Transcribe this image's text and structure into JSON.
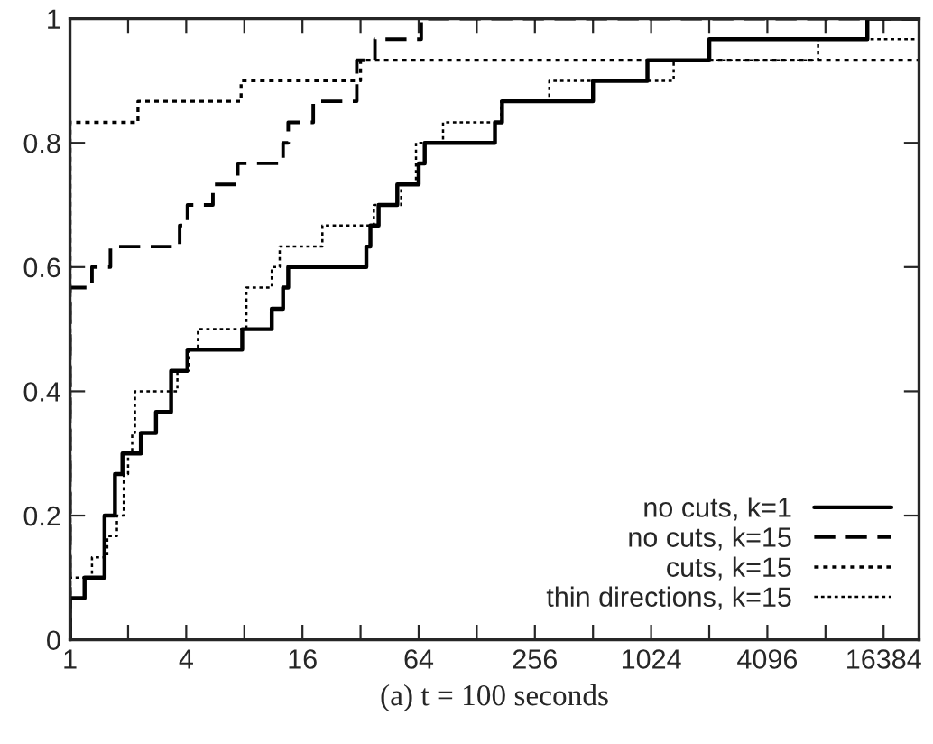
{
  "chart_data": {
    "type": "step",
    "xlabel": "(a) t = 100 seconds",
    "log": "x",
    "xlim": [
      1,
      25000
    ],
    "xticks": [
      1,
      {
        "value": 2,
        "label": null
      },
      4,
      {
        "value": 8,
        "label": null
      },
      16,
      {
        "value": 32,
        "label": null
      },
      64,
      {
        "value": 128,
        "label": null
      },
      256,
      {
        "value": 512,
        "label": null
      },
      1024,
      {
        "value": 2048,
        "label": null
      },
      4096,
      {
        "value": 8192,
        "label": null
      },
      16384
    ],
    "ylim": [
      0,
      1
    ],
    "yticks": [
      0,
      0.2,
      0.4,
      0.6,
      0.8,
      1
    ],
    "grid": false,
    "legend": "bottom right",
    "series": [
      {
        "name": "no cuts, k=1",
        "color": "#000000",
        "line_style": "solid",
        "x": [
          1,
          1,
          1.19,
          1.51,
          1.71,
          1.87,
          2.33,
          2.79,
          3.34,
          4.06,
          7.8,
          11.1,
          12.7,
          13.5,
          34.3,
          36,
          39.7,
          49.6,
          64,
          68.8,
          159,
          173,
          512,
          980,
          2050,
          13500,
          25000
        ],
        "values": [
          0,
          0.067,
          0.1,
          0.2,
          0.267,
          0.3,
          0.333,
          0.367,
          0.433,
          0.467,
          0.5,
          0.533,
          0.567,
          0.6,
          0.633,
          0.667,
          0.7,
          0.733,
          0.767,
          0.8,
          0.833,
          0.867,
          0.9,
          0.933,
          0.967,
          1,
          1
        ]
      },
      {
        "name": "no cuts, k=15",
        "color": "#000000",
        "line_style": "dashed",
        "x": [
          1,
          1,
          1.3,
          1.62,
          3.7,
          4.06,
          5.5,
          7.4,
          12.7,
          13.5,
          18.2,
          30.6,
          38,
          66,
          25000
        ],
        "values": [
          0,
          0.567,
          0.6,
          0.633,
          0.667,
          0.7,
          0.733,
          0.767,
          0.8,
          0.833,
          0.867,
          0.933,
          0.967,
          1,
          1
        ]
      },
      {
        "name": "cuts, k=15",
        "color": "#000000",
        "line_style": "dotted",
        "x": [
          1,
          1,
          2.25,
          7.7,
          32,
          25000
        ],
        "values": [
          0,
          0.833,
          0.867,
          0.9,
          0.933,
          0.933
        ]
      },
      {
        "name": "thin directions, k=15",
        "color": "#000000",
        "line_style": "dotted",
        "x": [
          1,
          1,
          1.3,
          1.56,
          1.75,
          1.9,
          2.0,
          2.1,
          2.17,
          3.6,
          4.15,
          4.6,
          8.2,
          11.1,
          12.2,
          20.3,
          37.5,
          52,
          62,
          85.6,
          171,
          304,
          1340,
          7500,
          25000
        ],
        "values": [
          0,
          0.1,
          0.133,
          0.167,
          0.2,
          0.267,
          0.3,
          0.333,
          0.4,
          0.433,
          0.467,
          0.5,
          0.567,
          0.6,
          0.633,
          0.667,
          0.7,
          0.733,
          0.8,
          0.833,
          0.867,
          0.9,
          0.933,
          0.967,
          0.967
        ]
      }
    ]
  }
}
